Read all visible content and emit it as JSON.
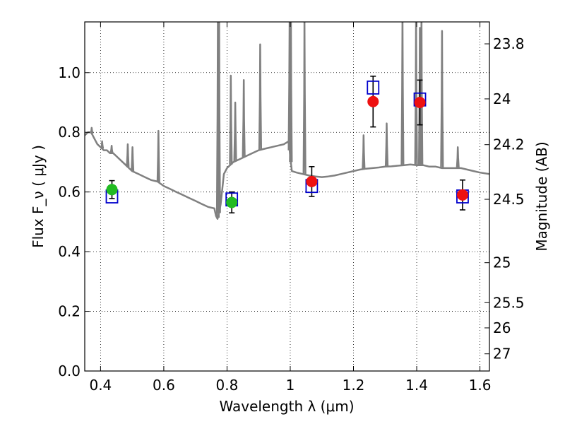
{
  "chart_data": {
    "type": "scatter",
    "xlabel": "Wavelength  λ (μm)",
    "ylabel": "Flux  F_ν  ( μJy )",
    "y2label": "Magnitude (AB)",
    "xlim": [
      0.35,
      1.63
    ],
    "ylim": [
      0.0,
      1.17
    ],
    "grid": true,
    "x_ticks": [
      0.4,
      0.6,
      0.8,
      1.0,
      1.2,
      1.4,
      1.6
    ],
    "x_tick_labels": [
      "0.4",
      "0.6",
      "0.8",
      "1",
      "1.2",
      "1.4",
      "1.6"
    ],
    "y_ticks": [
      0.0,
      0.2,
      0.4,
      0.6,
      0.8,
      1.0
    ],
    "y_tick_labels": [
      "0.0",
      "0.2",
      "0.4",
      "0.6",
      "0.8",
      "1.0"
    ],
    "y2_ticks": [
      {
        "mag": 23.8,
        "label": "23.8"
      },
      {
        "mag": 24.0,
        "label": "24"
      },
      {
        "mag": 24.2,
        "label": "24.2"
      },
      {
        "mag": 24.5,
        "label": "24.5"
      },
      {
        "mag": 25.0,
        "label": "25"
      },
      {
        "mag": 25.5,
        "label": "25.5"
      },
      {
        "mag": 26.0,
        "label": "26"
      },
      {
        "mag": 27.0,
        "label": "27"
      }
    ],
    "colors": {
      "model": "#808080",
      "model_points": "#0000cc",
      "observed_optical": "#22bb22",
      "observed_nir": "#ee1111",
      "errorbar": "#000000"
    },
    "model_spectrum": {
      "x": [
        0.35,
        0.36,
        0.37,
        0.38,
        0.39,
        0.4,
        0.41,
        0.42,
        0.43,
        0.44,
        0.45,
        0.46,
        0.47,
        0.48,
        0.49,
        0.5,
        0.52,
        0.54,
        0.56,
        0.58,
        0.6,
        0.62,
        0.64,
        0.66,
        0.68,
        0.7,
        0.72,
        0.74,
        0.76,
        0.765,
        0.77,
        0.775,
        0.78,
        0.79,
        0.8,
        0.82,
        0.84,
        0.86,
        0.88,
        0.9,
        0.92,
        0.94,
        0.96,
        0.98,
        0.995,
        1.005,
        1.02,
        1.04,
        1.06,
        1.08,
        1.1,
        1.12,
        1.14,
        1.16,
        1.18,
        1.2,
        1.22,
        1.24,
        1.26,
        1.28,
        1.3,
        1.32,
        1.34,
        1.36,
        1.38,
        1.4,
        1.42,
        1.44,
        1.46,
        1.48,
        1.5,
        1.52,
        1.54,
        1.56,
        1.58,
        1.6,
        1.63
      ],
      "y": [
        0.79,
        0.8,
        0.8,
        0.78,
        0.76,
        0.75,
        0.74,
        0.74,
        0.73,
        0.73,
        0.72,
        0.71,
        0.7,
        0.69,
        0.68,
        0.67,
        0.66,
        0.65,
        0.64,
        0.635,
        0.62,
        0.61,
        0.6,
        0.59,
        0.58,
        0.57,
        0.56,
        0.55,
        0.545,
        0.52,
        0.51,
        0.53,
        0.56,
        0.66,
        0.68,
        0.7,
        0.71,
        0.72,
        0.73,
        0.74,
        0.745,
        0.75,
        0.755,
        0.76,
        0.77,
        0.67,
        0.665,
        0.66,
        0.655,
        0.652,
        0.65,
        0.652,
        0.655,
        0.66,
        0.665,
        0.67,
        0.675,
        0.678,
        0.68,
        0.682,
        0.685,
        0.686,
        0.688,
        0.69,
        0.692,
        0.69,
        0.69,
        0.685,
        0.685,
        0.68,
        0.68,
        0.68,
        0.68,
        0.675,
        0.67,
        0.665,
        0.66
      ]
    },
    "emission_lines": [
      {
        "x": 0.372,
        "peak": 0.815
      },
      {
        "x": 0.405,
        "peak": 0.77
      },
      {
        "x": 0.435,
        "peak": 0.755
      },
      {
        "x": 0.486,
        "peak": 0.76
      },
      {
        "x": 0.501,
        "peak": 0.75
      },
      {
        "x": 0.583,
        "peak": 0.805
      },
      {
        "x": 0.771,
        "peak": 1.2
      },
      {
        "x": 0.775,
        "peak": 1.2
      },
      {
        "x": 0.812,
        "peak": 0.99
      },
      {
        "x": 0.826,
        "peak": 0.9
      },
      {
        "x": 0.853,
        "peak": 0.975
      },
      {
        "x": 0.905,
        "peak": 1.095
      },
      {
        "x": 0.998,
        "peak": 1.2
      },
      {
        "x": 1.002,
        "peak": 1.2
      },
      {
        "x": 1.045,
        "peak": 1.2
      },
      {
        "x": 1.232,
        "peak": 0.79
      },
      {
        "x": 1.305,
        "peak": 0.83
      },
      {
        "x": 1.355,
        "peak": 1.2
      },
      {
        "x": 1.398,
        "peak": 1.2
      },
      {
        "x": 1.415,
        "peak": 1.2
      },
      {
        "x": 1.41,
        "peak": 1.15
      },
      {
        "x": 1.48,
        "peak": 1.14
      },
      {
        "x": 1.53,
        "peak": 0.75
      }
    ],
    "model_points": [
      {
        "x": 0.436,
        "y": 0.585
      },
      {
        "x": 0.815,
        "y": 0.575
      },
      {
        "x": 1.068,
        "y": 0.62
      },
      {
        "x": 1.262,
        "y": 0.95
      },
      {
        "x": 1.41,
        "y": 0.91
      },
      {
        "x": 1.545,
        "y": 0.585
      }
    ],
    "observations": [
      {
        "x": 0.436,
        "y": 0.608,
        "err": 0.03,
        "band": "optical"
      },
      {
        "x": 0.815,
        "y": 0.565,
        "err": 0.035,
        "band": "optical"
      },
      {
        "x": 1.068,
        "y": 0.635,
        "err": 0.05,
        "band": "nir"
      },
      {
        "x": 1.262,
        "y": 0.903,
        "err": 0.085,
        "band": "nir"
      },
      {
        "x": 1.41,
        "y": 0.9,
        "err": 0.075,
        "band": "nir"
      },
      {
        "x": 1.545,
        "y": 0.59,
        "err": 0.05,
        "band": "nir"
      }
    ]
  }
}
